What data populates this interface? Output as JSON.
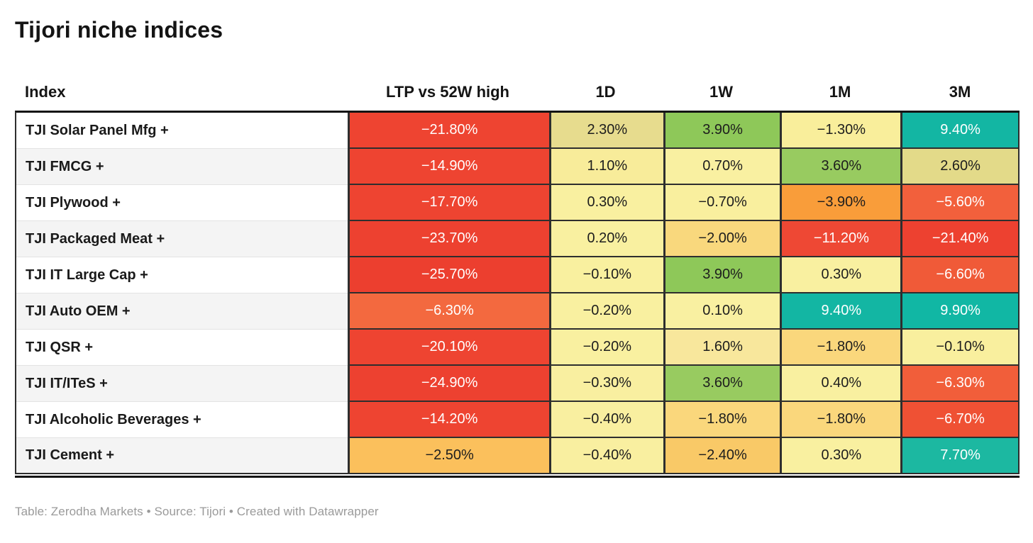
{
  "title": "Tijori niche indices",
  "footer": "Table: Zerodha Markets • Source: Tijori • Created with Datawrapper",
  "table": {
    "columns": [
      "Index",
      "LTP vs 52W high",
      "1D",
      "1W",
      "1M",
      "3M"
    ],
    "rows": [
      {
        "index": "TJI Solar Panel Mfg +",
        "cells": [
          {
            "value": "−21.80%",
            "bg": "#ee4431",
            "fg": "#ffffff"
          },
          {
            "value": "2.30%",
            "bg": "#e7dc8e",
            "fg": "#1d1d1d"
          },
          {
            "value": "3.90%",
            "bg": "#8ec859",
            "fg": "#1d1d1d"
          },
          {
            "value": "−1.30%",
            "bg": "#f9ee9b",
            "fg": "#1d1d1d"
          },
          {
            "value": "9.40%",
            "bg": "#13b6a3",
            "fg": "#ffffff"
          }
        ]
      },
      {
        "index": "TJI FMCG +",
        "cells": [
          {
            "value": "−14.90%",
            "bg": "#ee4431",
            "fg": "#ffffff"
          },
          {
            "value": "1.10%",
            "bg": "#f8ec9a",
            "fg": "#1d1d1d"
          },
          {
            "value": "0.70%",
            "bg": "#f9f0a1",
            "fg": "#1d1d1d"
          },
          {
            "value": "3.60%",
            "bg": "#98cb60",
            "fg": "#1d1d1d"
          },
          {
            "value": "2.60%",
            "bg": "#e3da89",
            "fg": "#1d1d1d"
          }
        ]
      },
      {
        "index": "TJI Plywood +",
        "cells": [
          {
            "value": "−17.70%",
            "bg": "#ee4431",
            "fg": "#ffffff"
          },
          {
            "value": "0.30%",
            "bg": "#f9f0a0",
            "fg": "#1d1d1d"
          },
          {
            "value": "−0.70%",
            "bg": "#f9ef9e",
            "fg": "#1d1d1d"
          },
          {
            "value": "−3.90%",
            "bg": "#f99d3a",
            "fg": "#1d1d1d"
          },
          {
            "value": "−5.60%",
            "bg": "#f2603c",
            "fg": "#ffffff"
          }
        ]
      },
      {
        "index": "TJI Packaged Meat +",
        "cells": [
          {
            "value": "−23.70%",
            "bg": "#ed4130",
            "fg": "#ffffff"
          },
          {
            "value": "0.20%",
            "bg": "#f9f0a0",
            "fg": "#1d1d1d"
          },
          {
            "value": "−2.00%",
            "bg": "#f9d87d",
            "fg": "#1d1d1d"
          },
          {
            "value": "−11.20%",
            "bg": "#ee4834",
            "fg": "#ffffff"
          },
          {
            "value": "−21.40%",
            "bg": "#ed4130",
            "fg": "#ffffff"
          }
        ]
      },
      {
        "index": "TJI IT Large Cap +",
        "cells": [
          {
            "value": "−25.70%",
            "bg": "#ec3f2f",
            "fg": "#ffffff"
          },
          {
            "value": "−0.10%",
            "bg": "#f9f09f",
            "fg": "#1d1d1d"
          },
          {
            "value": "3.90%",
            "bg": "#8ec859",
            "fg": "#1d1d1d"
          },
          {
            "value": "0.30%",
            "bg": "#f9f0a0",
            "fg": "#1d1d1d"
          },
          {
            "value": "−6.60%",
            "bg": "#f05a38",
            "fg": "#ffffff"
          }
        ]
      },
      {
        "index": "TJI Auto OEM +",
        "cells": [
          {
            "value": "−6.30%",
            "bg": "#f3693f",
            "fg": "#ffffff"
          },
          {
            "value": "−0.20%",
            "bg": "#f9f0a0",
            "fg": "#1d1d1d"
          },
          {
            "value": "0.10%",
            "bg": "#f9f0a1",
            "fg": "#1d1d1d"
          },
          {
            "value": "9.40%",
            "bg": "#13b6a3",
            "fg": "#ffffff"
          },
          {
            "value": "9.90%",
            "bg": "#11b7a4",
            "fg": "#ffffff"
          }
        ]
      },
      {
        "index": "TJI QSR +",
        "cells": [
          {
            "value": "−20.10%",
            "bg": "#ee4431",
            "fg": "#ffffff"
          },
          {
            "value": "−0.20%",
            "bg": "#f9f0a0",
            "fg": "#1d1d1d"
          },
          {
            "value": "1.60%",
            "bg": "#f8e79c",
            "fg": "#1d1d1d"
          },
          {
            "value": "−1.80%",
            "bg": "#fad77c",
            "fg": "#1d1d1d"
          },
          {
            "value": "−0.10%",
            "bg": "#f9ef9e",
            "fg": "#1d1d1d"
          }
        ]
      },
      {
        "index": "TJI IT/ITeS +",
        "cells": [
          {
            "value": "−24.90%",
            "bg": "#ed4130",
            "fg": "#ffffff"
          },
          {
            "value": "−0.30%",
            "bg": "#f9efa0",
            "fg": "#1d1d1d"
          },
          {
            "value": "3.60%",
            "bg": "#98cb60",
            "fg": "#1d1d1d"
          },
          {
            "value": "0.40%",
            "bg": "#f9f0a0",
            "fg": "#1d1d1d"
          },
          {
            "value": "−6.30%",
            "bg": "#f15e3a",
            "fg": "#ffffff"
          }
        ]
      },
      {
        "index": "TJI Alcoholic Beverages +",
        "cells": [
          {
            "value": "−14.20%",
            "bg": "#ee4431",
            "fg": "#ffffff"
          },
          {
            "value": "−0.40%",
            "bg": "#f9efa0",
            "fg": "#1d1d1d"
          },
          {
            "value": "−1.80%",
            "bg": "#fad77c",
            "fg": "#1d1d1d"
          },
          {
            "value": "−1.80%",
            "bg": "#fad77c",
            "fg": "#1d1d1d"
          },
          {
            "value": "−6.70%",
            "bg": "#ef5134",
            "fg": "#ffffff"
          }
        ]
      },
      {
        "index": "TJI Cement +",
        "cells": [
          {
            "value": "−2.50%",
            "bg": "#fbc05c",
            "fg": "#1d1d1d"
          },
          {
            "value": "−0.40%",
            "bg": "#f9efa0",
            "fg": "#1d1d1d"
          },
          {
            "value": "−2.40%",
            "bg": "#f9c967",
            "fg": "#1d1d1d"
          },
          {
            "value": "0.30%",
            "bg": "#f9f0a0",
            "fg": "#1d1d1d"
          },
          {
            "value": "7.70%",
            "bg": "#1cb8a1",
            "fg": "#ffffff"
          }
        ]
      }
    ]
  },
  "chart_data": {
    "type": "table",
    "title": "Tijori niche indices",
    "row_label_column": "Index",
    "rows": [
      "TJI Solar Panel Mfg +",
      "TJI FMCG +",
      "TJI Plywood +",
      "TJI Packaged Meat +",
      "TJI IT Large Cap +",
      "TJI Auto OEM +",
      "TJI QSR +",
      "TJI IT/ITeS +",
      "TJI Alcoholic Beverages +",
      "TJI Cement +"
    ],
    "series": [
      {
        "name": "LTP vs 52W high",
        "values": [
          -21.8,
          -14.9,
          -17.7,
          -23.7,
          -25.7,
          -6.3,
          -20.1,
          -24.9,
          -14.2,
          -2.5
        ]
      },
      {
        "name": "1D",
        "values": [
          2.3,
          1.1,
          0.3,
          0.2,
          -0.1,
          -0.2,
          -0.2,
          -0.3,
          -0.4,
          -0.4
        ]
      },
      {
        "name": "1W",
        "values": [
          3.9,
          0.7,
          -0.7,
          -2.0,
          3.9,
          0.1,
          1.6,
          3.6,
          -1.8,
          -2.4
        ]
      },
      {
        "name": "1M",
        "values": [
          -1.3,
          3.6,
          -3.9,
          -11.2,
          0.3,
          9.4,
          -1.8,
          0.4,
          -1.8,
          0.3
        ]
      },
      {
        "name": "3M",
        "values": [
          9.4,
          2.6,
          -5.6,
          -21.4,
          -6.6,
          9.9,
          -0.1,
          -6.3,
          -6.7,
          7.7
        ]
      }
    ],
    "unit": "%",
    "legend_position": "none",
    "color_scale": {
      "negative_strong": "#ed4130",
      "negative_mild": "#fbc05c",
      "neutral": "#f9f0a0",
      "positive_mild": "#8ec859",
      "positive_strong": "#13b6a3"
    }
  }
}
